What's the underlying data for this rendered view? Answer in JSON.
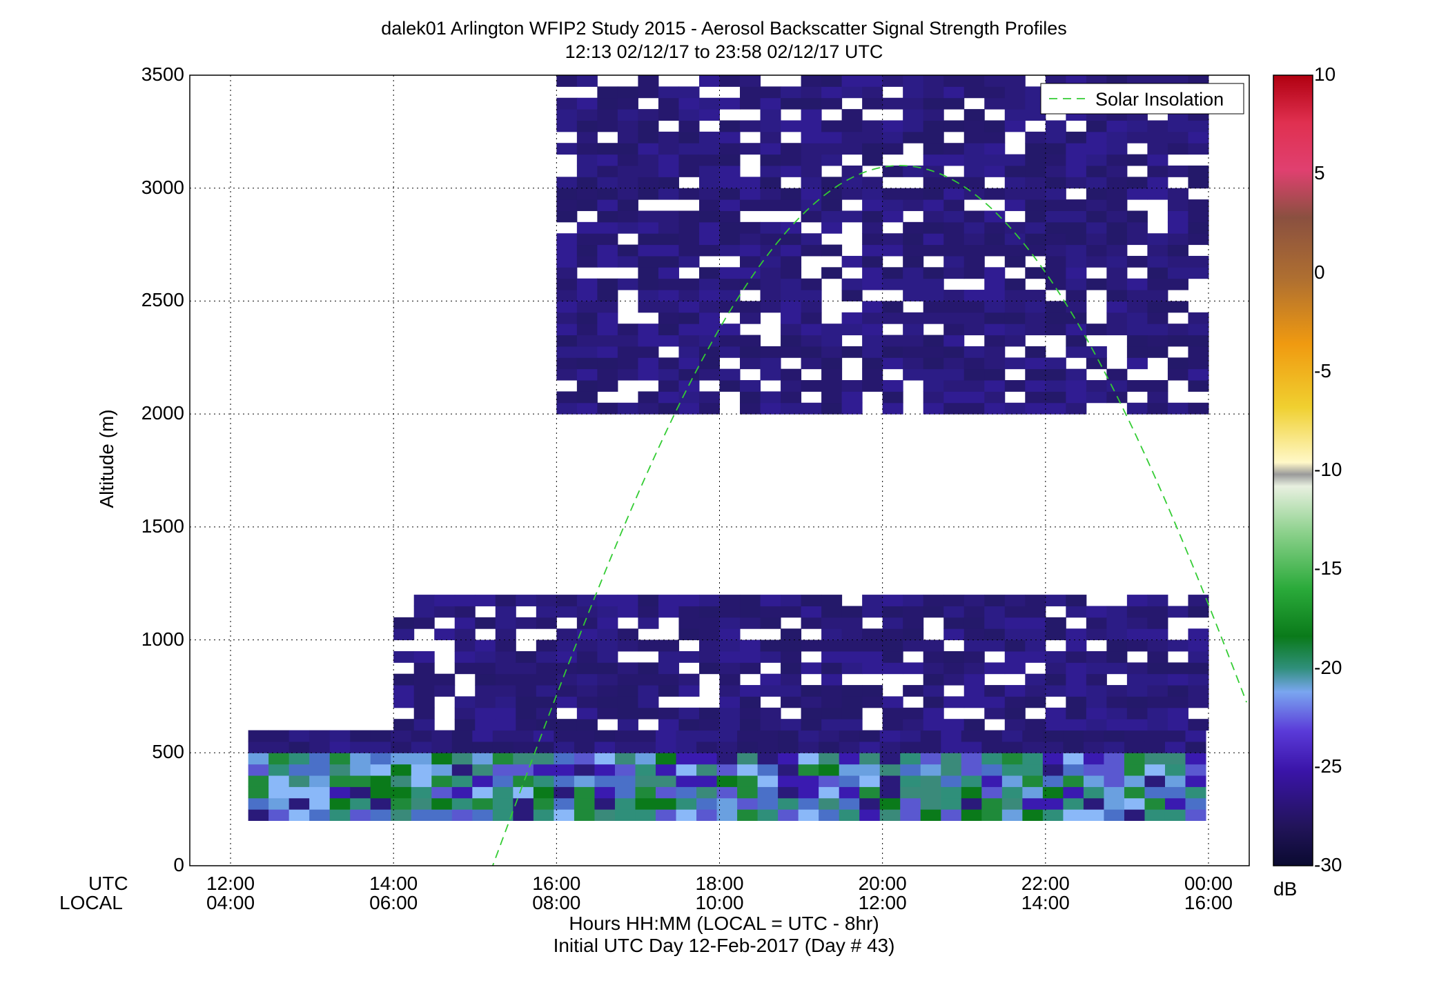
{
  "chart_data": {
    "type": "heatmap",
    "title": "dalek01 Arlington WFIP2 Study 2015 - Aerosol Backscatter Signal Strength Profiles",
    "subtitle": "12:13 02/12/17 to 23:58 02/12/17  UTC",
    "ylabel": "Altitude (m)",
    "xlabel": "Hours HH:MM  (LOCAL = UTC - 8hr)",
    "xlabel2": "Initial UTC Day 12-Feb-2017 (Day # 43)",
    "x_row_label_utc": "UTC",
    "x_row_label_local": "LOCAL",
    "xlim_hours": [
      11.5,
      24.5
    ],
    "ylim": [
      0,
      3500
    ],
    "y_ticks": [
      "0",
      "500",
      "1000",
      "1500",
      "2000",
      "2500",
      "3000",
      "3500"
    ],
    "x_ticks_utc": [
      "12:00",
      "14:00",
      "16:00",
      "18:00",
      "20:00",
      "22:00",
      "00:00"
    ],
    "x_ticks_local": [
      "04:00",
      "06:00",
      "08:00",
      "10:00",
      "12:00",
      "14:00",
      "16:00"
    ],
    "grid": true,
    "legend": {
      "placement": "top-right",
      "entries": [
        "Solar Insolation"
      ],
      "color": "#33cc33"
    },
    "colorbar": {
      "unit": "dB",
      "range": [
        -30,
        10
      ],
      "ticks": [
        "10",
        "5",
        "0",
        "-5",
        "-10",
        "-15",
        "-20",
        "-25",
        "-30"
      ]
    },
    "solar_insolation_curve": {
      "peak_time_utc": "20:13",
      "peak_altitude_m": 3100
    },
    "layers": [
      {
        "name": "aerosol_boundary_layer",
        "time_start_utc": "12:13",
        "time_end_utc": "23:58",
        "altitude_m": [
          200,
          600
        ],
        "value_db_range": [
          -22,
          -18
        ]
      },
      {
        "name": "residual_layer",
        "time_start_utc": "14:00",
        "time_end_utc": "23:58",
        "altitude_m": [
          600,
          1200
        ],
        "value_db_range": [
          -27,
          -25
        ]
      },
      {
        "name": "upper_layer",
        "time_start_utc": "16:00",
        "time_end_utc": "23:58",
        "altitude_m": [
          2000,
          3500
        ],
        "value_db_range": [
          -27,
          -25
        ]
      }
    ]
  }
}
